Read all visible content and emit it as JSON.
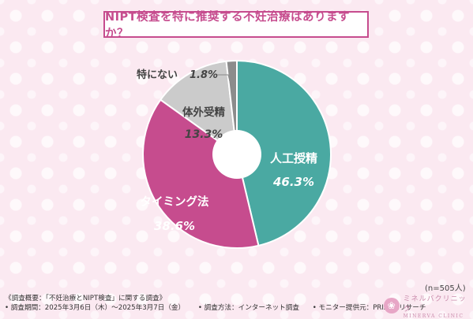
{
  "title": "NIPT検査を特に推奨する不妊治療はありますか？",
  "chart_data": {
    "type": "pie",
    "donut": true,
    "slices": [
      {
        "label": "人工授精",
        "value": 46.3,
        "display": "46.3%",
        "color": "#4aa9a2"
      },
      {
        "label": "タイミング法",
        "value": 38.6,
        "display": "38.6%",
        "color": "#c64c8e"
      },
      {
        "label": "体外受精",
        "value": 13.3,
        "display": "13.3%",
        "color": "#cbcbcb"
      },
      {
        "label": "特にない",
        "value": 1.8,
        "display": "1.8%",
        "color": "#8c8c8c"
      }
    ]
  },
  "sample_note": "(n=505人)",
  "footer": {
    "line1": "《調査概要：「不妊治療とNIPT検査」に関する調査》",
    "line2_items": [
      "• 調査期間：2025年3月6日（木）〜2025年3月7日（金）",
      "• 調査方法：インターネット調査",
      "• モニター提供元：PRIZMAリサーチ"
    ]
  },
  "logo": {
    "icon": "lotus-icon",
    "jp": "ミネルバクリニック",
    "en": "MINERVA CLINIC"
  }
}
